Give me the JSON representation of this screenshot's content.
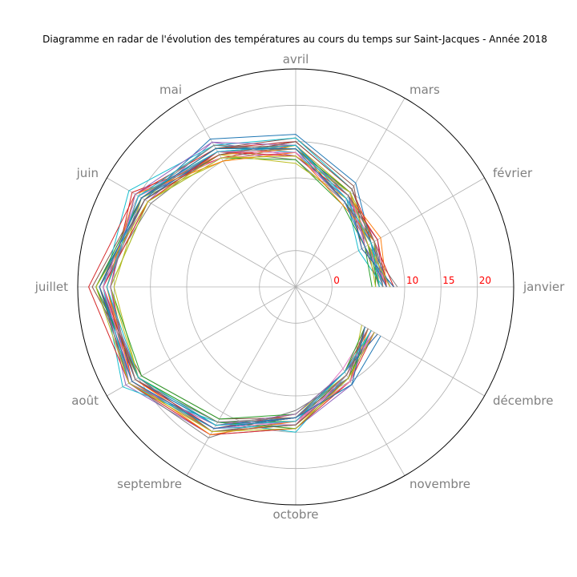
{
  "chart_data": {
    "type": "line",
    "subtype": "radar",
    "title": "Diagramme en radar de l'évolution des températures au cours du temps sur Saint-Jacques - Année 2018",
    "categories": [
      "janvier",
      "février",
      "mars",
      "avril",
      "mai",
      "juin",
      "juillet",
      "août",
      "septembre",
      "octobre",
      "novembre",
      "décembre"
    ],
    "r_ticks": [
      "0",
      "10",
      "15",
      "20"
    ],
    "r_tick_values": [
      0,
      10,
      15,
      20
    ],
    "rlim": [
      -5,
      25
    ],
    "grid": true,
    "legend": "none",
    "series_count": 31,
    "series_mean": [
      7.2,
      6.7,
      9.3,
      13.9,
      16.5,
      19.5,
      21.5,
      20.8,
      17.4,
      13.5,
      9.3,
      6.8
    ],
    "series": [
      {
        "values": [
          8.0,
          7.0,
          10.5,
          15.0,
          16.0,
          19.5,
          22.0,
          20.5,
          17.0,
          13.0,
          9.5,
          7.5
        ]
      },
      {
        "values": [
          7.5,
          6.5,
          9.5,
          14.0,
          17.5,
          20.0,
          21.0,
          21.5,
          18.0,
          14.0,
          10.0,
          7.0
        ]
      },
      {
        "values": [
          6.0,
          7.5,
          8.5,
          13.5,
          16.5,
          19.0,
          22.5,
          20.0,
          16.5,
          13.5,
          9.0,
          6.5
        ]
      },
      {
        "values": [
          8.5,
          5.5,
          10.0,
          14.5,
          15.5,
          21.0,
          20.5,
          21.0,
          17.5,
          12.5,
          8.5,
          8.0
        ]
      },
      {
        "values": [
          7.0,
          8.0,
          9.0,
          13.0,
          18.0,
          18.5,
          21.5,
          22.0,
          18.5,
          14.5,
          10.5,
          6.0
        ]
      },
      {
        "values": [
          6.5,
          6.0,
          11.0,
          15.5,
          17.0,
          19.5,
          23.0,
          19.5,
          16.0,
          13.0,
          9.5,
          7.0
        ]
      },
      {
        "values": [
          7.5,
          7.0,
          9.5,
          14.0,
          16.0,
          20.5,
          21.0,
          20.5,
          17.5,
          14.0,
          8.0,
          6.5
        ]
      },
      {
        "values": [
          9.0,
          6.5,
          8.5,
          12.5,
          16.5,
          18.0,
          22.0,
          21.5,
          19.0,
          12.0,
          9.5,
          7.5
        ]
      },
      {
        "values": [
          6.5,
          7.5,
          10.0,
          14.5,
          15.0,
          19.5,
          20.0,
          20.0,
          17.0,
          13.5,
          10.0,
          5.5
        ]
      },
      {
        "values": [
          7.0,
          5.0,
          9.0,
          13.5,
          17.5,
          21.5,
          21.5,
          22.5,
          16.5,
          15.0,
          9.0,
          7.0
        ]
      },
      {
        "values": [
          8.0,
          7.0,
          11.5,
          16.0,
          18.5,
          19.0,
          22.5,
          21.0,
          17.5,
          13.0,
          10.5,
          8.5
        ]
      },
      {
        "values": [
          7.5,
          8.5,
          9.5,
          14.0,
          16.0,
          20.0,
          21.0,
          20.5,
          18.0,
          14.0,
          9.0,
          6.5
        ]
      },
      {
        "values": [
          5.5,
          6.0,
          8.0,
          12.5,
          15.5,
          18.5,
          20.5,
          19.5,
          16.0,
          12.5,
          8.5,
          6.0
        ]
      },
      {
        "values": [
          8.5,
          7.5,
          10.5,
          15.0,
          17.0,
          20.5,
          23.5,
          21.5,
          18.5,
          14.5,
          10.0,
          7.5
        ]
      },
      {
        "values": [
          7.0,
          6.5,
          9.0,
          13.0,
          16.5,
          19.0,
          21.5,
          20.0,
          17.0,
          13.5,
          9.5,
          7.0
        ]
      },
      {
        "values": [
          6.5,
          7.0,
          8.5,
          14.5,
          17.0,
          19.5,
          22.0,
          21.5,
          17.5,
          13.0,
          8.5,
          6.5
        ]
      },
      {
        "values": [
          8.0,
          6.0,
          10.0,
          13.5,
          15.5,
          20.0,
          21.0,
          20.5,
          16.5,
          14.0,
          9.0,
          7.5
        ]
      },
      {
        "values": [
          7.5,
          7.5,
          9.5,
          14.0,
          16.5,
          19.5,
          22.5,
          21.0,
          18.0,
          13.5,
          10.0,
          6.0
        ]
      },
      {
        "values": [
          6.0,
          6.5,
          9.0,
          12.0,
          16.0,
          18.5,
          20.5,
          20.0,
          17.0,
          12.5,
          9.0,
          6.5
        ]
      },
      {
        "values": [
          7.0,
          7.0,
          10.5,
          15.5,
          17.5,
          20.0,
          21.5,
          21.5,
          17.5,
          14.0,
          9.5,
          7.0
        ]
      },
      {
        "values": [
          8.5,
          5.5,
          9.5,
          14.5,
          16.5,
          19.0,
          22.0,
          20.5,
          17.0,
          13.0,
          8.5,
          8.0
        ]
      },
      {
        "values": [
          7.0,
          7.5,
          8.0,
          13.5,
          15.0,
          20.5,
          21.0,
          21.0,
          18.5,
          13.5,
          10.0,
          6.5
        ]
      },
      {
        "values": [
          6.5,
          6.5,
          10.0,
          14.0,
          17.0,
          19.5,
          22.5,
          20.0,
          16.5,
          14.5,
          9.5,
          7.0
        ]
      },
      {
        "values": [
          7.5,
          8.0,
          9.5,
          13.0,
          16.5,
          18.5,
          21.5,
          20.5,
          17.5,
          13.0,
          9.0,
          6.5
        ]
      },
      {
        "values": [
          8.0,
          6.5,
          9.0,
          14.5,
          18.0,
          20.5,
          20.5,
          21.5,
          17.0,
          12.5,
          8.5,
          7.5
        ]
      },
      {
        "values": [
          6.5,
          7.0,
          10.5,
          15.0,
          16.0,
          19.0,
          22.0,
          20.0,
          18.0,
          14.0,
          9.5,
          6.0
        ]
      },
      {
        "values": [
          7.5,
          6.0,
          8.5,
          13.5,
          16.5,
          20.0,
          21.5,
          21.0,
          17.5,
          13.5,
          10.0,
          7.0
        ]
      },
      {
        "values": [
          7.0,
          7.5,
          9.5,
          14.0,
          17.5,
          19.5,
          21.0,
          20.5,
          16.5,
          13.0,
          9.0,
          6.5
        ]
      },
      {
        "values": [
          8.0,
          6.5,
          10.0,
          13.0,
          15.5,
          18.5,
          22.5,
          21.5,
          18.0,
          14.5,
          9.5,
          7.5
        ]
      },
      {
        "values": [
          6.5,
          7.0,
          9.0,
          14.5,
          16.5,
          20.0,
          21.0,
          20.0,
          17.0,
          13.5,
          8.5,
          7.0
        ]
      },
      {
        "values": [
          7.5,
          6.0,
          8.5,
          14.0,
          17.0,
          19.5,
          22.0,
          21.0,
          17.5,
          13.0,
          10.5,
          6.0
        ]
      }
    ]
  },
  "colors": {
    "series": [
      "#1f77b4",
      "#ff7f0e",
      "#2ca02c",
      "#d62728",
      "#9467bd",
      "#8c564b",
      "#e377c2",
      "#7f7f7f",
      "#bcbd22",
      "#17becf"
    ],
    "grid": "#b0b0b0",
    "frame": "#000000",
    "month_label": "#808080",
    "r_tick": "#ff0000",
    "background": "#ffffff"
  }
}
